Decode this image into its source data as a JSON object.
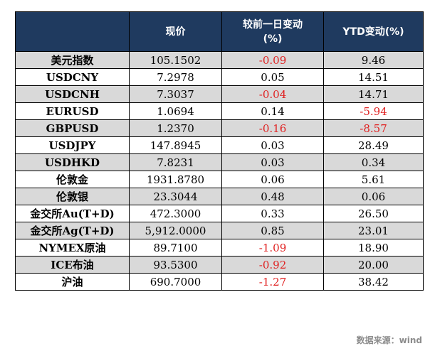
{
  "table": {
    "headers": [
      "",
      "现价",
      "较前一日变动(%)",
      "YTD变动(%)"
    ],
    "header_lines": {
      "price": [
        "现价"
      ],
      "daily": [
        "较前一日变动",
        "(%)"
      ],
      "ytd": [
        "YTD变动(%)"
      ]
    },
    "rows": [
      {
        "name": "美元指数",
        "price": "105.1502",
        "daily": "-0.09",
        "ytd": "9.46",
        "shaded": true
      },
      {
        "name": "USDCNY",
        "price": "7.2978",
        "daily": "0.05",
        "ytd": "14.51",
        "shaded": false
      },
      {
        "name": "USDCNH",
        "price": "7.3037",
        "daily": "-0.04",
        "ytd": "14.71",
        "shaded": true
      },
      {
        "name": "EURUSD",
        "price": "1.0694",
        "daily": "0.14",
        "ytd": "-5.94",
        "shaded": false
      },
      {
        "name": "GBPUSD",
        "price": "1.2370",
        "daily": "-0.16",
        "ytd": "-8.57",
        "shaded": true
      },
      {
        "name": "USDJPY",
        "price": "147.8945",
        "daily": "0.03",
        "ytd": "28.49",
        "shaded": false
      },
      {
        "name": "USDHKD",
        "price": "7.8231",
        "daily": "0.03",
        "ytd": "0.34",
        "shaded": true
      },
      {
        "name": "伦敦金",
        "price": "1931.8780",
        "daily": "0.06",
        "ytd": "5.61",
        "shaded": false
      },
      {
        "name": "伦敦银",
        "price": "23.3044",
        "daily": "0.48",
        "ytd": "0.06",
        "shaded": true
      },
      {
        "name": "金交所Au(T+D)",
        "price": "472.3000",
        "daily": "0.33",
        "ytd": "26.50",
        "shaded": false
      },
      {
        "name": "金交所Ag(T+D)",
        "price": "5,912.0000",
        "daily": "0.85",
        "ytd": "23.01",
        "shaded": true
      },
      {
        "name": "NYMEX原油",
        "price": "89.7100",
        "daily": "-1.09",
        "ytd": "18.90",
        "shaded": false
      },
      {
        "name": "ICE布油",
        "price": "93.5300",
        "daily": "-0.92",
        "ytd": "20.00",
        "shaded": true
      },
      {
        "name": "沪油",
        "price": "690.7000",
        "daily": "-1.27",
        "ytd": "38.42",
        "shaded": false
      }
    ]
  },
  "source": "数据来源：wind",
  "colors": {
    "header_bg": "#1f3a5f",
    "header_text": "#ffffff",
    "shaded_row": "#d9d9d9",
    "negative": "#e02020",
    "source_text": "#8c8c8c"
  }
}
